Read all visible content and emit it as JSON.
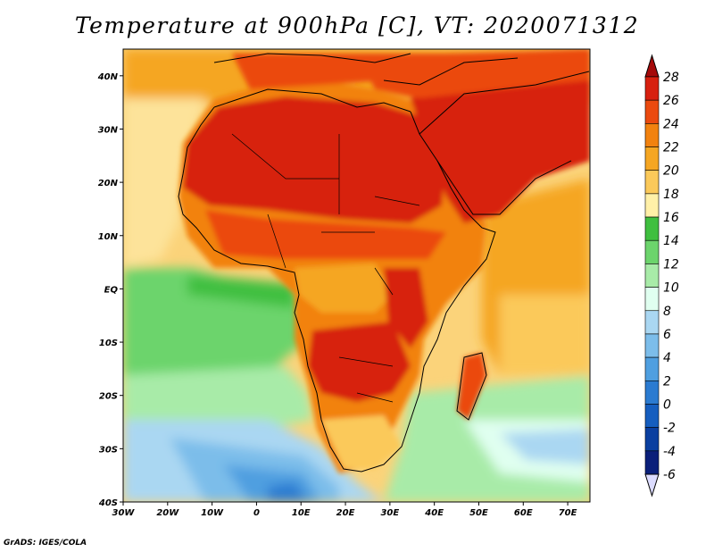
{
  "title": "Temperature at 900hPa [C], VT: 2020071312",
  "credit": "GrADS: IGES/COLA",
  "map": {
    "variable": "Temperature",
    "level": "900hPa",
    "units": "C",
    "valid_time": "2020071312",
    "lon_range": [
      -30,
      75
    ],
    "lat_range": [
      -40,
      45
    ],
    "x_ticks": [
      "30W",
      "20W",
      "10W",
      "0",
      "10E",
      "20E",
      "30E",
      "40E",
      "50E",
      "60E",
      "70E"
    ],
    "x_tick_values": [
      -30,
      -20,
      -10,
      0,
      10,
      20,
      30,
      40,
      50,
      60,
      70
    ],
    "y_ticks": [
      "40N",
      "30N",
      "20N",
      "10N",
      "EQ",
      "10S",
      "20S",
      "30S",
      "40S"
    ],
    "y_tick_values": [
      40,
      30,
      20,
      10,
      0,
      -10,
      -20,
      -30,
      -40
    ]
  },
  "colorbar": {
    "labels": [
      "28",
      "26",
      "24",
      "22",
      "20",
      "18",
      "16",
      "14",
      "12",
      "10",
      "8",
      "6",
      "4",
      "2",
      "0",
      "-2",
      "-4",
      "-6"
    ],
    "colors": [
      "#a50a0a",
      "#d7200f",
      "#eb4a0f",
      "#f2820f",
      "#f5a623",
      "#fbc95a",
      "#fff0a8",
      "#3fbf3f",
      "#6cd46c",
      "#a8eba8",
      "#e0fff0",
      "#aad7f2",
      "#7cbdea",
      "#4f9fe0",
      "#2b7bd1",
      "#155ebf",
      "#0a3fa0",
      "#0a1f7a",
      "#dcdcff"
    ]
  },
  "colors": {
    "ocean": "#fbe4a0",
    "hot": "#d7200f",
    "land": "#e9761a",
    "cool_ocean": "#6cd46c",
    "cold_ocean": "#7cbdea"
  }
}
